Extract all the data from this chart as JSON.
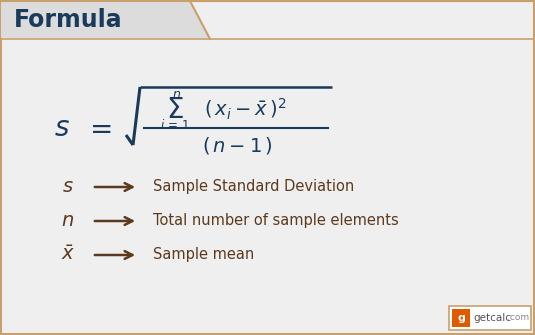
{
  "title": "Formula",
  "title_color": "#1a3a5c",
  "title_bg_color": "#dcdcdc",
  "border_color": "#c8a06e",
  "bg_color": "#efefef",
  "formula_color": "#1a3a5c",
  "label_color": "#5c3a1e",
  "arrow_color": "#5c3a1e",
  "desc_color": "#5c3a1e",
  "legend_items": [
    {
      "symbol": "s",
      "type": "plain",
      "desc": "Sample Standard Deviation"
    },
    {
      "symbol": "n",
      "type": "plain",
      "desc": "Total number of sample elements"
    },
    {
      "symbol": "x",
      "type": "bar",
      "desc": "Sample mean"
    }
  ],
  "getcalc_orange": "#e05a00",
  "getcalc_gray": "#555555"
}
